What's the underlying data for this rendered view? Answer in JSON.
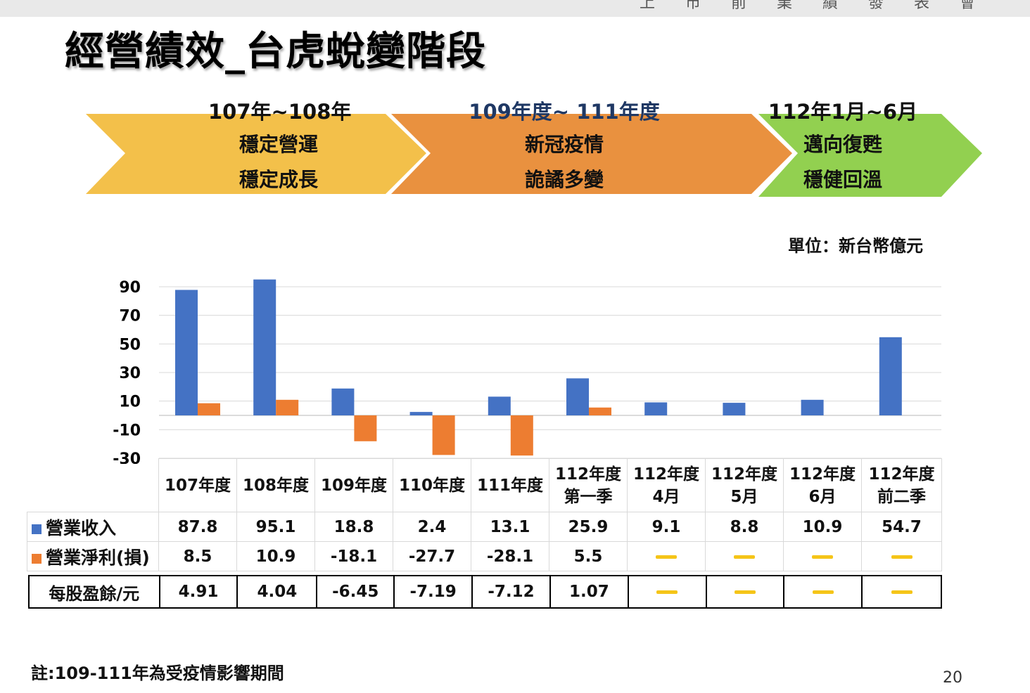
{
  "header": {
    "top_text": "上 市 前 業 績 發 表 會"
  },
  "title": "經營績效_台虎蛻變階段",
  "stages": [
    {
      "date": "107年~108年",
      "line1": "穩定營運",
      "line2": "穩定成長",
      "color": "#f3c04a",
      "date_color": "#111111"
    },
    {
      "date": "109年度~ 111年度",
      "line1": "新冠疫情",
      "line2": "詭譎多變",
      "color": "#e9913f",
      "date_color": "#1f3864"
    },
    {
      "date": "112年1月~6月",
      "line1": "邁向復甦",
      "line2": "穩健回溫",
      "color": "#92d050",
      "date_color": "#111111"
    }
  ],
  "unit_label": "單位：新台幣億元",
  "chart_data": {
    "type": "bar",
    "categories": [
      "107年度",
      "108年度",
      "109年度",
      "110年度",
      "111年度",
      "112年度\n第一季",
      "112年度\n4月",
      "112年度\n5月",
      "112年度\n6月",
      "112年度\n前二季"
    ],
    "series": [
      {
        "name": "營業收入",
        "color": "#4472c4",
        "values": [
          87.8,
          95.1,
          18.8,
          2.4,
          13.1,
          25.9,
          9.1,
          8.8,
          10.9,
          54.7
        ]
      },
      {
        "name": "營業淨利(損)",
        "color": "#ed7d31",
        "values": [
          8.5,
          10.9,
          -18.1,
          -27.7,
          -28.1,
          5.5,
          null,
          null,
          null,
          null
        ]
      }
    ],
    "ylim": [
      -30,
      90
    ],
    "yticks": [
      90,
      70,
      50,
      30,
      10,
      -10,
      -30
    ],
    "grid": true
  },
  "table": {
    "revenue_label": "營業收入",
    "revenue_values": [
      "87.8",
      "95.1",
      "18.8",
      "2.4",
      "13.1",
      "25.9",
      "9.1",
      "8.8",
      "10.9",
      "54.7"
    ],
    "profit_label": "營業淨利(損)",
    "profit_values": [
      "8.5",
      "10.9",
      "-18.1",
      "-27.7",
      "-28.1",
      "5.5",
      "—",
      "—",
      "—",
      "—"
    ],
    "eps_label": "每股盈餘/元",
    "eps_values": [
      "4.91",
      "4.04",
      "-6.45",
      "-7.19",
      "-7.12",
      "1.07",
      "—",
      "—",
      "—",
      "—"
    ]
  },
  "note": "註:109-111年為受疫情影響期間",
  "page_number": "20"
}
